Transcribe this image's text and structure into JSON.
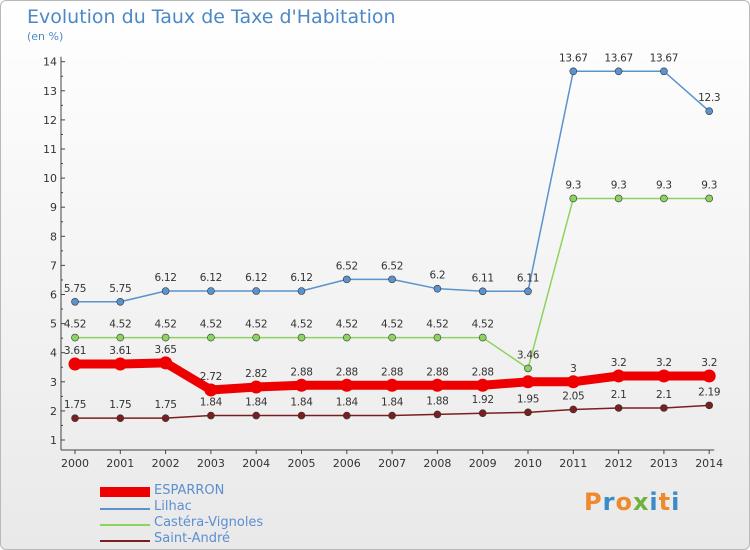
{
  "title": "Evolution du Taux de Taxe d'Habitation",
  "unit_label": "(en %)",
  "logo": {
    "text": "Proxiti",
    "letters": [
      "P",
      "r",
      "o",
      "x",
      "i",
      "t",
      "i"
    ],
    "colors": [
      "#ef8a2a",
      "#3d8ac9",
      "#ef8a2a",
      "#6eb33f",
      "#3d8ac9",
      "#ef8a2a",
      "#3d8ac9"
    ]
  },
  "chart_data": {
    "type": "line",
    "title": "Evolution du Taux de Taxe d'Habitation",
    "ylabel": "(en %)",
    "ylim": [
      1,
      14
    ],
    "yticks": [
      1,
      2,
      3,
      4,
      5,
      6,
      7,
      8,
      9,
      10,
      11,
      12,
      13,
      14
    ],
    "x": [
      "2000",
      "2001",
      "2002",
      "2003",
      "2004",
      "2005",
      "2006",
      "2007",
      "2008",
      "2009",
      "2010",
      "2011",
      "2012",
      "2013",
      "2014"
    ],
    "grid": false,
    "legend_position": "bottom-left",
    "series": [
      {
        "name": "Lilhac",
        "color": "#5a93cd",
        "values": [
          5.75,
          5.75,
          6.12,
          6.12,
          6.12,
          6.12,
          6.52,
          6.52,
          6.2,
          6.11,
          6.11,
          13.67,
          13.67,
          13.67,
          12.3
        ],
        "labels": [
          "5.75",
          "5.75",
          "6.12",
          "6.12",
          "6.12",
          "6.12",
          "6.52",
          "6.52",
          "6.2",
          "6.11",
          "6.11",
          "13.67",
          "13.67",
          "13.67",
          "12.3"
        ]
      },
      {
        "name": "Castéra-Vignoles",
        "color": "#8dd35f",
        "values": [
          4.52,
          4.52,
          4.52,
          4.52,
          4.52,
          4.52,
          4.52,
          4.52,
          4.52,
          4.52,
          3.46,
          9.3,
          9.3,
          9.3,
          9.3
        ],
        "labels": [
          "4.52",
          "4.52",
          "4.52",
          "4.52",
          "4.52",
          "4.52",
          "4.52",
          "4.52",
          "4.52",
          "4.52",
          "3.46",
          "9.3",
          "9.3",
          "9.3",
          "9.3"
        ]
      },
      {
        "name": "ESPARRON",
        "color": "#ee0000",
        "values": [
          3.61,
          3.61,
          3.65,
          2.72,
          2.82,
          2.88,
          2.88,
          2.88,
          2.88,
          2.88,
          3,
          3,
          3.2,
          3.2,
          3.2
        ],
        "labels": [
          "3.61",
          "3.61",
          "3.65",
          "2.72",
          "2.82",
          "2.88",
          "2.88",
          "2.88",
          "2.88",
          "2.88",
          "",
          "3",
          "3.2",
          "3.2",
          "3.2"
        ]
      },
      {
        "name": "Saint-André",
        "color": "#7a1f1f",
        "values": [
          1.75,
          1.75,
          1.75,
          1.84,
          1.84,
          1.84,
          1.84,
          1.84,
          1.88,
          1.92,
          1.95,
          2.05,
          2.1,
          2.1,
          2.19
        ],
        "labels": [
          "1.75",
          "1.75",
          "1.75",
          "1.84",
          "1.84",
          "1.84",
          "1.84",
          "1.84",
          "1.88",
          "1.92",
          "1.95",
          "2.05",
          "2.1",
          "2.1",
          "2.19"
        ]
      }
    ],
    "legend_order": [
      "ESPARRON",
      "Lilhac",
      "Castéra-Vignoles",
      "Saint-André"
    ]
  }
}
